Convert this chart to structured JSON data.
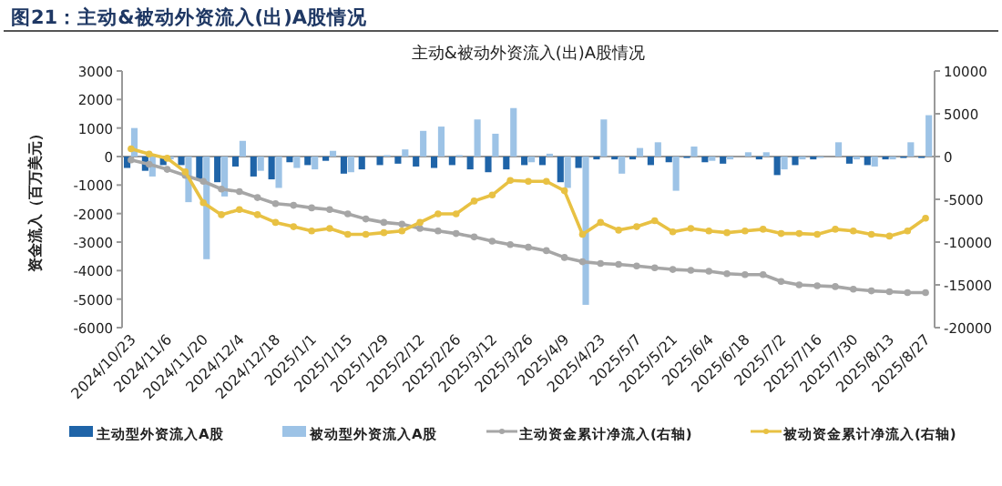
{
  "chart_data": {
    "type": "bar",
    "title": "图21：主动&被动外资流入(出)A股情况",
    "subtitle": "主动&被动外资流入(出)A股情况",
    "ylabel": "资金流入（百万美元）",
    "categories": [
      "2024/10/23",
      null,
      "2024/11/6",
      null,
      "2024/11/20",
      null,
      "2024/12/4",
      null,
      "2024/12/18",
      null,
      "2025/1/1",
      null,
      "2025/1/15",
      null,
      "2025/1/29",
      null,
      "2025/2/12",
      null,
      "2025/2/26",
      null,
      "2025/3/12",
      null,
      "2025/3/26",
      null,
      "2025/4/9",
      null,
      "2025/4/23",
      null,
      "2025/5/7",
      null,
      "2025/5/21",
      null,
      "2025/6/4",
      null,
      "2025/6/18",
      null,
      "2025/7/2",
      null,
      "2025/7/16",
      null,
      "2025/7/30",
      null,
      "2025/8/13",
      null,
      "2025/8/27"
    ],
    "series": [
      {
        "name": "主动型外资流入A股",
        "color": "#1f64a8",
        "values": [
          -400,
          -500,
          -300,
          -300,
          -800,
          -900,
          -350,
          -700,
          -800,
          -200,
          -300,
          -150,
          -600,
          -450,
          -300,
          -250,
          -350,
          -400,
          -300,
          -450,
          -550,
          -450,
          -300,
          -300,
          -900,
          -400,
          -100,
          -100,
          -100,
          -300,
          -200,
          -50,
          -200,
          -250,
          0,
          -100,
          -650,
          -300,
          -100,
          0,
          -250,
          -300,
          -100,
          -50,
          -50
        ]
      },
      {
        "name": "被动型外资流入A股",
        "color": "#9dc3e6",
        "values": [
          1000,
          -700,
          -100,
          -1600,
          -3600,
          -1400,
          550,
          -500,
          -1100,
          -400,
          -450,
          200,
          -550,
          0,
          50,
          250,
          900,
          1050,
          50,
          1300,
          800,
          1700,
          -200,
          100,
          -1100,
          -5200,
          1300,
          -600,
          300,
          500,
          -1200,
          350,
          -150,
          -100,
          150,
          150,
          -450,
          -100,
          -50,
          500,
          -100,
          -350,
          -100,
          500,
          1450
        ]
      },
      {
        "name": "主动资金累计净流入(右轴)",
        "type": "line",
        "axis": "y2",
        "color": "#a6a6a6",
        "values": [
          -400,
          -900,
          -1500,
          -2200,
          -2900,
          -3800,
          -4100,
          -4800,
          -5500,
          -5700,
          -6000,
          -6200,
          -6700,
          -7300,
          -7700,
          -7900,
          -8400,
          -8700,
          -9000,
          -9400,
          -9900,
          -10300,
          -10600,
          -11000,
          -11800,
          -12300,
          -12500,
          -12600,
          -12800,
          -13000,
          -13200,
          -13300,
          -13400,
          -13700,
          -13800,
          -13800,
          -14600,
          -15000,
          -15100,
          -15200,
          -15500,
          -15700,
          -15800,
          -15900,
          -15900
        ]
      },
      {
        "name": "被动资金累计净流入(右轴)",
        "type": "line",
        "axis": "y2",
        "color": "#e8c143",
        "values": [
          900,
          300,
          -200,
          -1800,
          -5400,
          -6800,
          -6200,
          -6800,
          -7700,
          -8200,
          -8700,
          -8400,
          -9100,
          -9100,
          -8900,
          -8700,
          -7700,
          -6700,
          -6700,
          -5200,
          -4500,
          -2800,
          -2900,
          -2900,
          -4000,
          -9100,
          -7700,
          -8600,
          -8200,
          -7500,
          -8800,
          -8400,
          -8700,
          -8900,
          -8700,
          -8500,
          -9000,
          -9000,
          -9100,
          -8500,
          -8700,
          -9100,
          -9300,
          -8700,
          -7200
        ]
      }
    ],
    "ylim": [
      -6000,
      3000
    ],
    "yticks": [
      -6000,
      -5000,
      -4000,
      -3000,
      -2000,
      -1000,
      0,
      1000,
      2000,
      3000
    ],
    "y2lim": [
      -20000,
      10000
    ],
    "y2ticks": [
      -20000,
      -15000,
      -10000,
      -5000,
      0,
      5000,
      10000
    ],
    "marker": "circle",
    "legend": "bottom"
  }
}
